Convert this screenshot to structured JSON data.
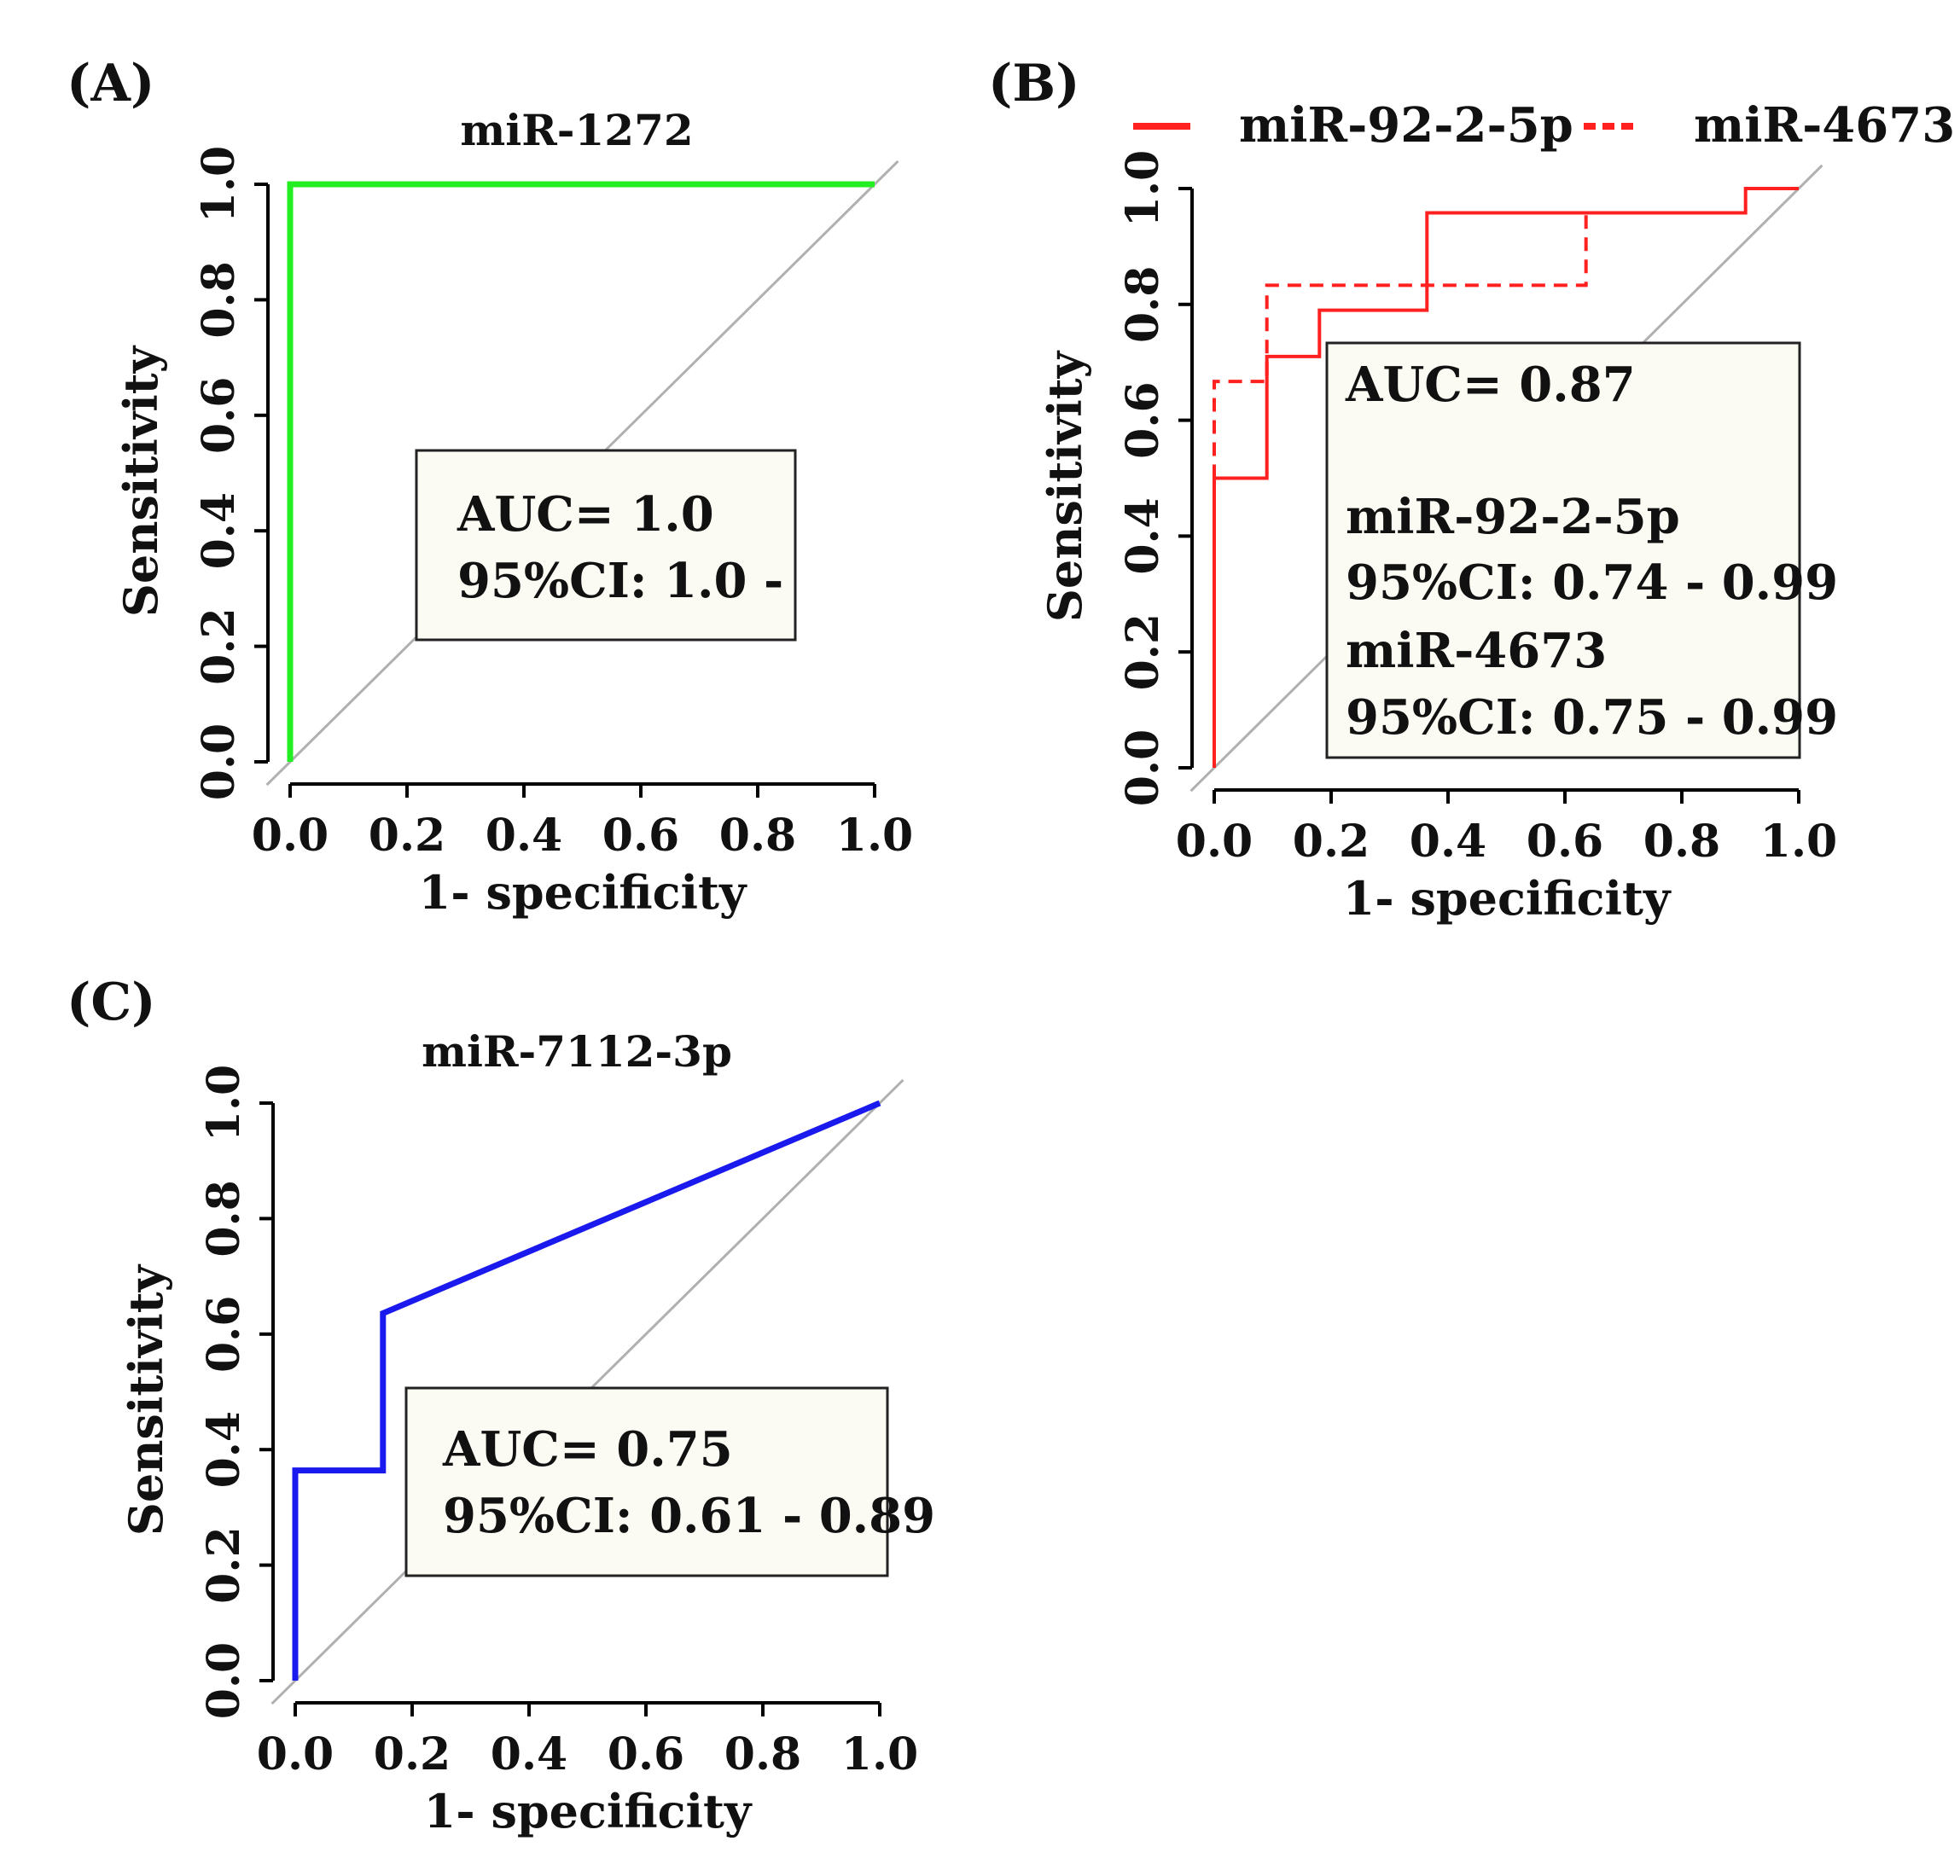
{
  "chart_data": [
    {
      "type": "line",
      "panel_label": "(A)",
      "title": "miR-1272",
      "xlabel": "1- specificity",
      "ylabel": "Sensitivity",
      "xlim": [
        0,
        1
      ],
      "ylim": [
        0,
        1
      ],
      "xticks": [
        "0.0",
        "0.2",
        "0.4",
        "0.6",
        "0.8",
        "1.0"
      ],
      "yticks": [
        "0.0",
        "0.2",
        "0.4",
        "0.6",
        "0.8",
        "1.0"
      ],
      "reference_line": "diagonal",
      "series": [
        {
          "name": "miR-1272",
          "color": "#22ee22",
          "style": "solid",
          "points": [
            [
              0,
              0
            ],
            [
              0,
              1
            ],
            [
              1,
              1
            ]
          ]
        }
      ],
      "annotation": [
        "AUC= 1.0",
        "95%CI: 1.0 -"
      ]
    },
    {
      "type": "line",
      "panel_label": "(B)",
      "title": "",
      "xlabel": "1- specificity",
      "ylabel": "Sensitivity",
      "xlim": [
        0,
        1
      ],
      "ylim": [
        0,
        1
      ],
      "xticks": [
        "0.0",
        "0.2",
        "0.4",
        "0.6",
        "0.8",
        "1.0"
      ],
      "yticks": [
        "0.0",
        "0.2",
        "0.4",
        "0.6",
        "0.8",
        "1.0"
      ],
      "reference_line": "diagonal",
      "legend": [
        "miR-92-2-5p",
        "miR-4673"
      ],
      "series": [
        {
          "name": "miR-92-2-5p",
          "color": "#ff2020",
          "style": "solid",
          "points": [
            [
              0,
              0
            ],
            [
              0,
              0.5
            ],
            [
              0.09,
              0.5
            ],
            [
              0.09,
              0.71
            ],
            [
              0.18,
              0.71
            ],
            [
              0.18,
              0.79
            ],
            [
              0.364,
              0.79
            ],
            [
              0.364,
              0.958
            ],
            [
              0.909,
              0.958
            ],
            [
              0.909,
              1
            ],
            [
              1,
              1
            ]
          ]
        },
        {
          "name": "miR-4673",
          "color": "#ff2020",
          "style": "dashed",
          "points": [
            [
              0,
              0.5
            ],
            [
              0,
              0.667
            ],
            [
              0.09,
              0.667
            ],
            [
              0.09,
              0.833
            ],
            [
              0.636,
              0.833
            ],
            [
              0.636,
              0.958
            ],
            [
              0.909,
              0.958
            ]
          ]
        }
      ],
      "annotation": [
        "AUC= 0.87",
        "",
        "miR-92-2-5p",
        "95%CI: 0.74 - 0.99",
        "miR-4673",
        "95%CI: 0.75 - 0.99"
      ]
    },
    {
      "type": "line",
      "panel_label": "(C)",
      "title": "miR-7112-3p",
      "xlabel": "1- specificity",
      "ylabel": "Sensitivity",
      "xlim": [
        0,
        1
      ],
      "ylim": [
        0,
        1
      ],
      "xticks": [
        "0.0",
        "0.2",
        "0.4",
        "0.6",
        "0.8",
        "1.0"
      ],
      "yticks": [
        "0.0",
        "0.2",
        "0.4",
        "0.6",
        "0.8",
        "1.0"
      ],
      "reference_line": "diagonal",
      "series": [
        {
          "name": "miR-7112-3p",
          "color": "#1a1aee",
          "style": "solid",
          "points": [
            [
              0,
              0
            ],
            [
              0,
              0.364
            ],
            [
              0.15,
              0.364
            ],
            [
              0.15,
              0.636
            ],
            [
              1,
              1
            ]
          ]
        }
      ],
      "annotation": [
        "AUC= 0.75",
        "95%CI: 0.61 - 0.89"
      ]
    }
  ]
}
